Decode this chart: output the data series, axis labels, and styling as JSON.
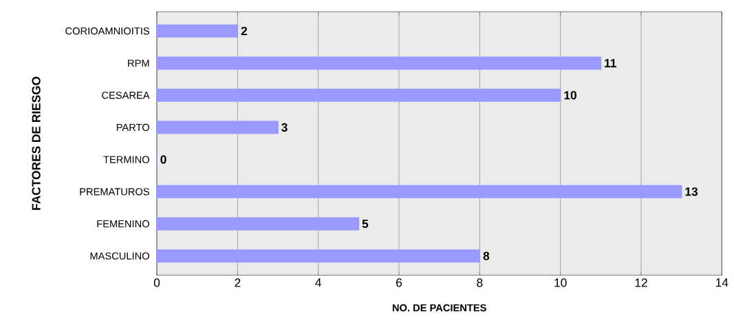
{
  "chart_data": {
    "type": "bar",
    "orientation": "horizontal",
    "categories": [
      "CORIOAMNIOITIS",
      "RPM",
      "CESAREA",
      "PARTO",
      "TERMINO",
      "PREMATUROS",
      "FEMENINO",
      "MASCULINO"
    ],
    "values": [
      2,
      11,
      10,
      3,
      0,
      13,
      5,
      8
    ],
    "color": "#9999ff",
    "xlim": [
      0,
      14
    ],
    "xticks": [
      0,
      2,
      4,
      6,
      8,
      10,
      12,
      14
    ],
    "xlabel": "NO. DE PACIENTES",
    "ylabel": "FACTORES DE RIESGO",
    "grid": "x",
    "data_labels": true
  }
}
